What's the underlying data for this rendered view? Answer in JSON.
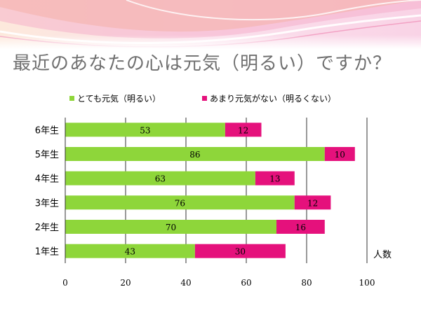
{
  "slide_title": "最近のあなたの心は元気（明るい）ですか？",
  "colors": {
    "series_1": "#8ed63a",
    "series_2": "#e5117c",
    "title_text": "#6f6f6f",
    "grid": "#333333",
    "banner_pink": "#f6b7d0",
    "banner_orange": "#fbd6a8"
  },
  "chart_data": {
    "type": "bar",
    "orientation": "horizontal",
    "stacked": true,
    "categories": [
      "6年生",
      "5年生",
      "4年生",
      "3年生",
      "2年生",
      "1年生"
    ],
    "series": [
      {
        "name": "とても元気（明るい）",
        "values": [
          53,
          86,
          63,
          76,
          70,
          43
        ]
      },
      {
        "name": "あまり元気がない（明るくない）",
        "values": [
          12,
          10,
          13,
          12,
          16,
          30
        ]
      }
    ],
    "xlim": [
      0,
      100
    ],
    "xticks": [
      0,
      20,
      40,
      60,
      80,
      100
    ],
    "xlabel": "人数",
    "ylabel": "",
    "grid": "vertical major lines",
    "legend_position": "top-left"
  }
}
